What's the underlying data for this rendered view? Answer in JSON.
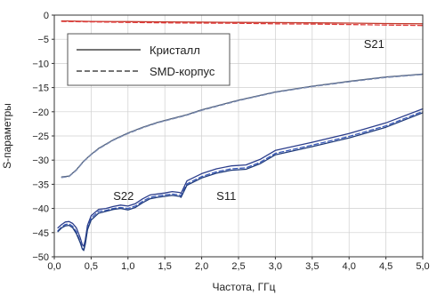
{
  "chart_data": {
    "type": "line",
    "xlabel": "Частота, ГГц",
    "ylabel": "S-параметры",
    "xlim": [
      0,
      5
    ],
    "ylim": [
      -50,
      0
    ],
    "xticks": [
      0,
      0.5,
      1,
      1.5,
      2,
      2.5,
      3,
      3.5,
      4,
      4.5,
      5
    ],
    "xtick_labels": [
      "0,0",
      "0,5",
      "1,0",
      "1,5",
      "2,0",
      "2,5",
      "3,0",
      "3,5",
      "4,0",
      "4,5",
      "5,0"
    ],
    "yticks": [
      0,
      -5,
      -10,
      -15,
      -20,
      -25,
      -30,
      -35,
      -40,
      -45,
      -50
    ],
    "ytick_labels": [
      "0",
      "−5",
      "−10",
      "−15",
      "−20",
      "−25",
      "−30",
      "−35",
      "−40",
      "−45",
      "−50"
    ],
    "grid": true,
    "legend": {
      "placement": "top-left",
      "entries": [
        {
          "label": "Кристалл",
          "style": "solid"
        },
        {
          "label": "SMD-корпус",
          "style": "dashed"
        }
      ]
    },
    "annotations": [
      {
        "text": "S21",
        "x": 4.2,
        "y": -6.8
      },
      {
        "text": "S22",
        "x": 0.8,
        "y": -38.2
      },
      {
        "text": "S11",
        "x": 2.2,
        "y": -38.2
      }
    ],
    "series": [
      {
        "group": "S21",
        "style": "solid",
        "color": "#c0392b",
        "x": [
          0.1,
          0.5,
          1.0,
          1.5,
          2.0,
          2.5,
          3.0,
          3.5,
          4.0,
          4.5,
          5.0
        ],
        "y": [
          -1.2,
          -1.3,
          -1.35,
          -1.4,
          -1.45,
          -1.5,
          -1.55,
          -1.6,
          -1.65,
          -1.75,
          -1.8
        ]
      },
      {
        "group": "S21",
        "style": "dashed",
        "color": "#e03b3b",
        "x": [
          0.1,
          0.5,
          1.0,
          1.5,
          2.0,
          2.5,
          3.0,
          3.5,
          4.0,
          4.5,
          5.0
        ],
        "y": [
          -1.3,
          -1.4,
          -1.5,
          -1.6,
          -1.65,
          -1.7,
          -1.8,
          -1.85,
          -1.95,
          -2.05,
          -2.15
        ]
      },
      {
        "group": "S22",
        "style": "solid",
        "color": "#4a5a75",
        "x": [
          0.1,
          0.2,
          0.3,
          0.4,
          0.5,
          0.6,
          0.8,
          1.0,
          1.2,
          1.4,
          1.6,
          1.8,
          2.0,
          2.5,
          3.0,
          3.5,
          4.0,
          4.5,
          5.0
        ],
        "y": [
          -33.5,
          -33.3,
          -32.0,
          -30.2,
          -28.8,
          -27.6,
          -25.8,
          -24.4,
          -23.2,
          -22.2,
          -21.4,
          -20.6,
          -19.6,
          -17.6,
          -15.9,
          -14.7,
          -13.7,
          -12.8,
          -12.2
        ]
      },
      {
        "group": "S22",
        "style": "dashed",
        "color": "#7a8ab0",
        "x": [
          0.1,
          0.2,
          0.3,
          0.4,
          0.5,
          0.6,
          0.8,
          1.0,
          1.2,
          1.4,
          1.6,
          1.8,
          2.0,
          2.5,
          3.0,
          3.5,
          4.0,
          4.5,
          5.0
        ],
        "y": [
          -33.6,
          -33.4,
          -32.1,
          -30.3,
          -28.9,
          -27.7,
          -25.9,
          -24.5,
          -23.3,
          -22.3,
          -21.5,
          -20.7,
          -19.7,
          -17.7,
          -16.0,
          -14.8,
          -13.8,
          -12.9,
          -12.3
        ]
      },
      {
        "group": "S11",
        "style": "solid",
        "color": "#2c3e8c",
        "x": [
          0.05,
          0.1,
          0.15,
          0.2,
          0.25,
          0.3,
          0.35,
          0.38,
          0.4,
          0.42,
          0.45,
          0.5,
          0.6,
          0.7,
          0.8,
          0.9,
          1.0,
          1.1,
          1.2,
          1.3,
          1.4,
          1.5,
          1.6,
          1.7,
          1.72,
          1.8,
          2.0,
          2.2,
          2.4,
          2.6,
          2.8,
          3.0,
          3.5,
          4.0,
          4.5,
          5.0
        ],
        "y": [
          -44.0,
          -43.3,
          -42.8,
          -42.7,
          -43.1,
          -44.0,
          -46.0,
          -47.5,
          -47.8,
          -46.5,
          -43.5,
          -41.5,
          -40.2,
          -40.0,
          -39.6,
          -39.3,
          -39.5,
          -39.0,
          -38.0,
          -37.2,
          -37.0,
          -36.8,
          -36.5,
          -36.7,
          -36.9,
          -34.3,
          -32.8,
          -31.8,
          -31.2,
          -31.0,
          -29.8,
          -28.0,
          -26.3,
          -24.5,
          -22.3,
          -19.4
        ]
      },
      {
        "group": "S11",
        "style": "dashed",
        "color": "#3a5ab8",
        "x": [
          0.05,
          0.1,
          0.15,
          0.2,
          0.25,
          0.3,
          0.35,
          0.38,
          0.4,
          0.42,
          0.45,
          0.5,
          0.6,
          0.7,
          0.8,
          0.9,
          1.0,
          1.1,
          1.2,
          1.3,
          1.4,
          1.5,
          1.6,
          1.7,
          1.72,
          1.8,
          2.0,
          2.2,
          2.4,
          2.6,
          2.8,
          3.0,
          3.5,
          4.0,
          4.5,
          5.0
        ],
        "y": [
          -44.6,
          -43.8,
          -43.3,
          -43.2,
          -43.7,
          -44.8,
          -46.8,
          -48.2,
          -48.5,
          -47.2,
          -44.2,
          -42.0,
          -40.6,
          -40.4,
          -40.0,
          -39.8,
          -40.0,
          -39.5,
          -38.5,
          -37.7,
          -37.4,
          -37.2,
          -37.0,
          -37.2,
          -37.4,
          -34.9,
          -33.4,
          -32.4,
          -31.8,
          -31.6,
          -30.4,
          -28.6,
          -26.9,
          -25.1,
          -22.9,
          -19.9
        ]
      },
      {
        "group": "S11",
        "style": "solid",
        "color": "#1e3a7a",
        "x": [
          0.05,
          0.1,
          0.15,
          0.2,
          0.25,
          0.3,
          0.35,
          0.38,
          0.4,
          0.42,
          0.45,
          0.5,
          0.6,
          0.7,
          0.8,
          0.9,
          1.0,
          1.1,
          1.2,
          1.3,
          1.4,
          1.5,
          1.6,
          1.7,
          1.72,
          1.8,
          2.0,
          2.2,
          2.4,
          2.6,
          2.8,
          3.0,
          3.5,
          4.0,
          4.5,
          5.0
        ],
        "y": [
          -44.8,
          -44.0,
          -43.6,
          -43.5,
          -44.0,
          -45.2,
          -47.0,
          -48.4,
          -48.7,
          -47.4,
          -44.4,
          -42.4,
          -41.0,
          -40.6,
          -40.2,
          -40.0,
          -40.3,
          -39.8,
          -38.8,
          -38.0,
          -37.7,
          -37.5,
          -37.3,
          -37.5,
          -37.7,
          -35.2,
          -33.7,
          -32.7,
          -32.1,
          -31.9,
          -30.7,
          -28.9,
          -27.2,
          -25.4,
          -23.2,
          -20.2
        ]
      }
    ]
  }
}
